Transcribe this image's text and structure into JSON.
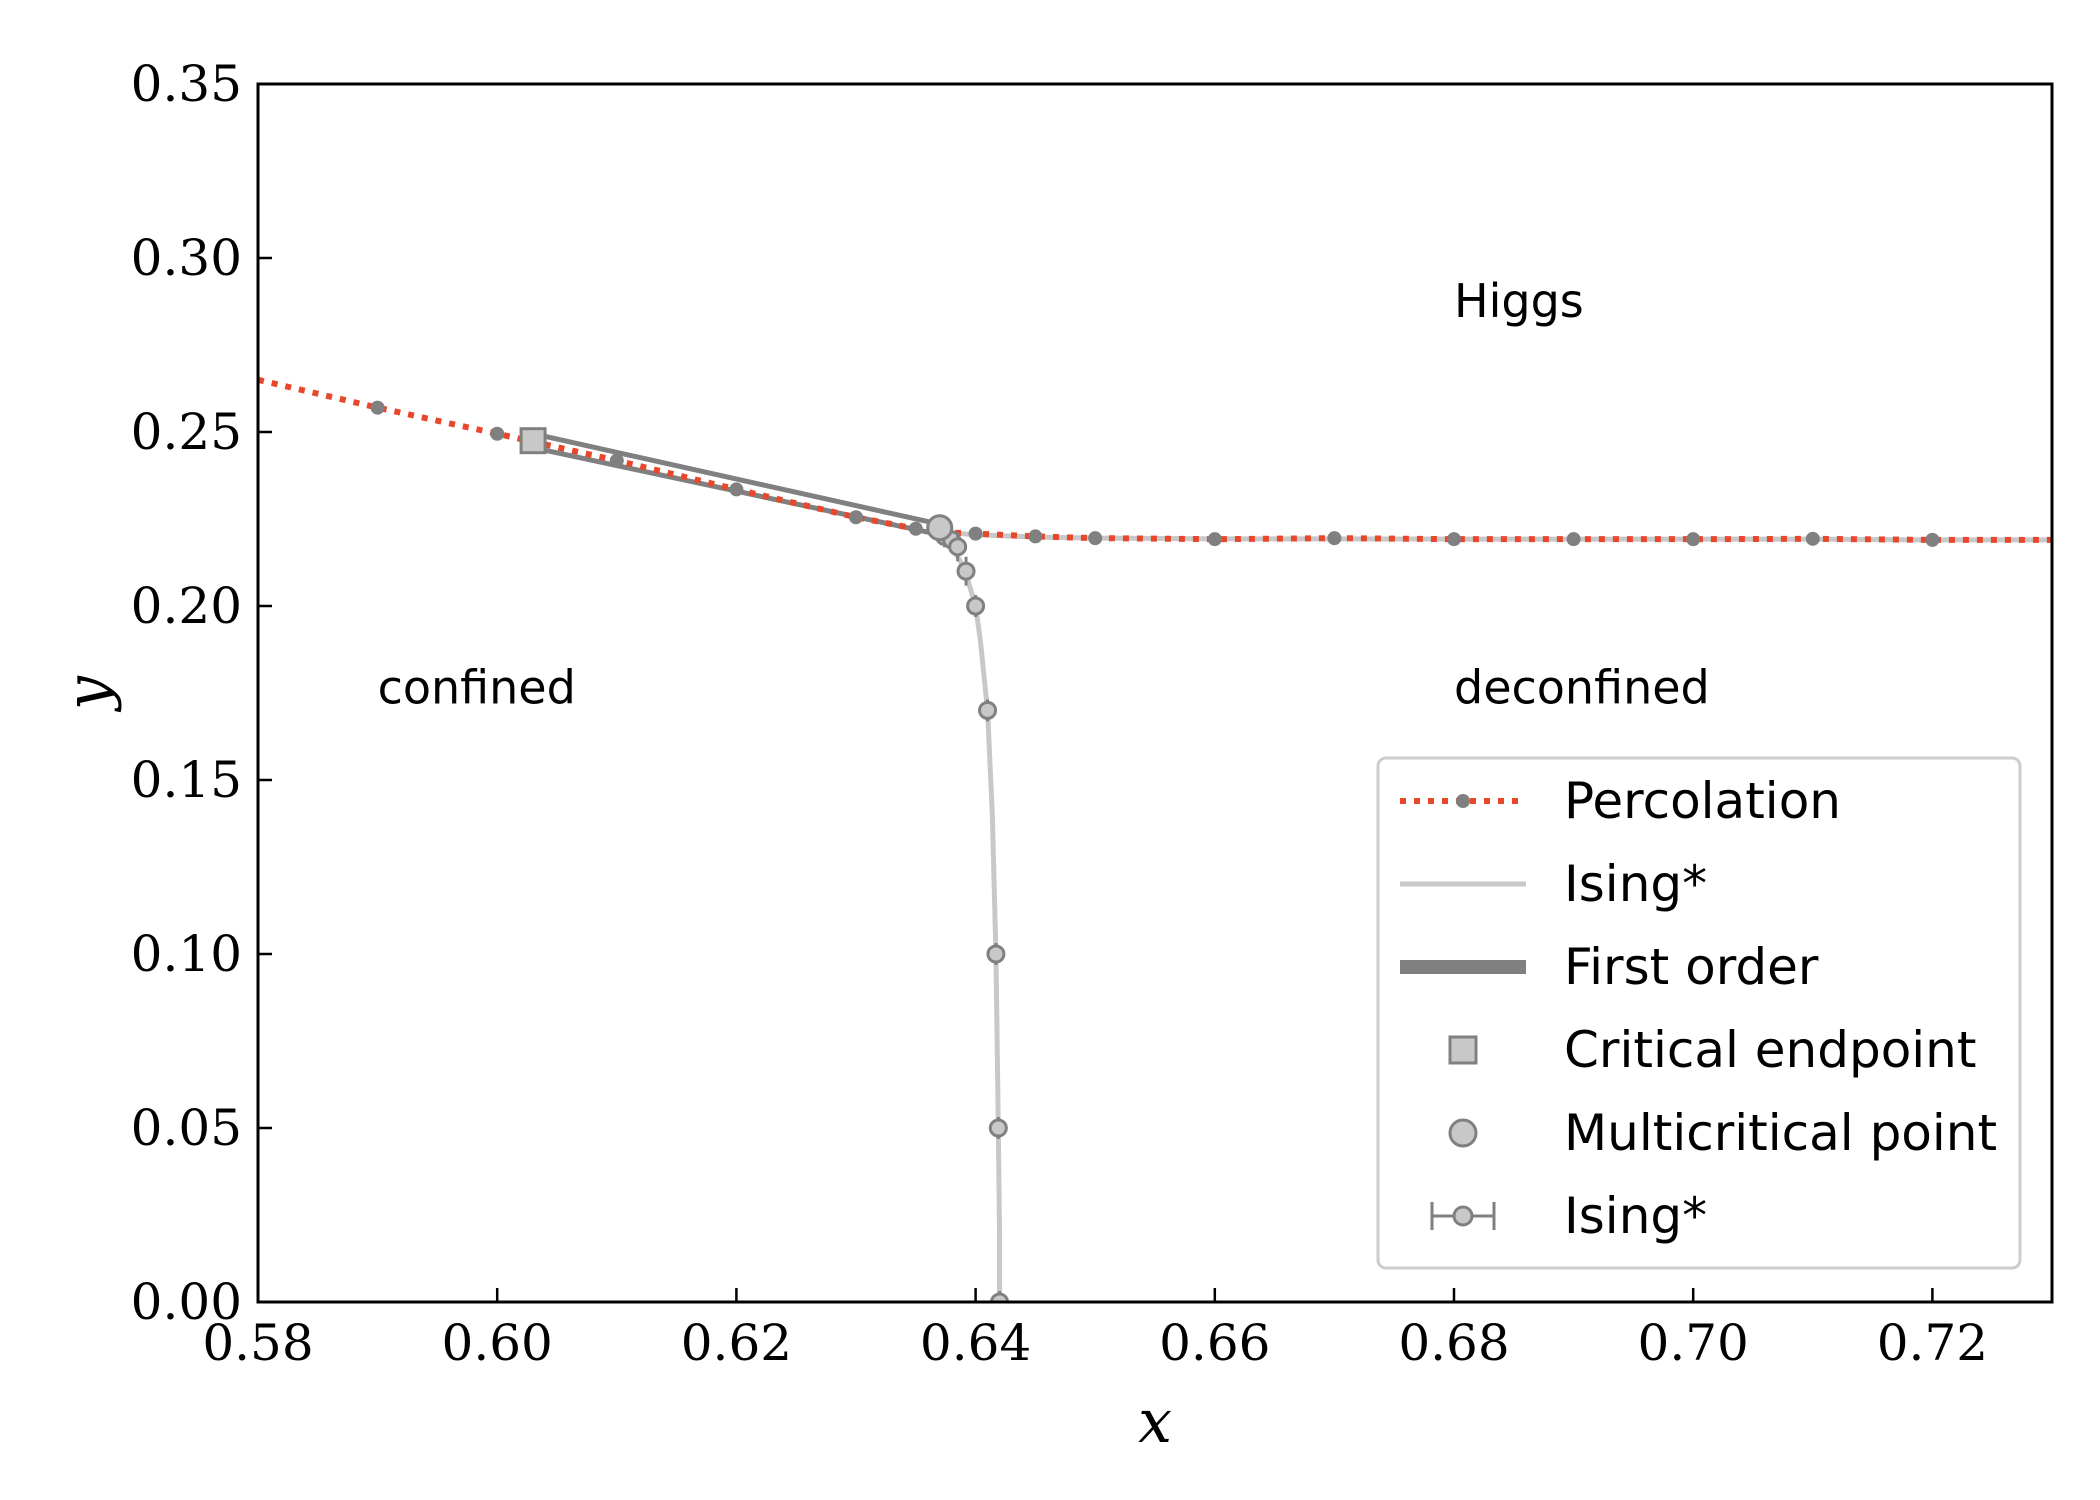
{
  "chart_data": {
    "type": "scatter",
    "xlabel": "x",
    "ylabel": "y",
    "xlim": [
      0.58,
      0.73
    ],
    "ylim": [
      0.0,
      0.35
    ],
    "xticks": [
      "0.58",
      "0.60",
      "0.62",
      "0.64",
      "0.66",
      "0.68",
      "0.70",
      "0.72"
    ],
    "yticks": [
      "0.00",
      "0.05",
      "0.10",
      "0.15",
      "0.20",
      "0.25",
      "0.30",
      "0.35"
    ],
    "grid": false,
    "legend_position": "lower-right",
    "region_labels": [
      {
        "text": "Higgs",
        "x": 0.68,
        "y": 0.283
      },
      {
        "text": "confined",
        "x": 0.59,
        "y": 0.172
      },
      {
        "text": "deconfined",
        "x": 0.68,
        "y": 0.172
      }
    ],
    "series": [
      {
        "name": "Percolation",
        "kind": "dotted-line-markers",
        "color": "#e8472c",
        "marker_color": "#808080",
        "line_x": [
          0.58,
          0.59,
          0.6,
          0.61,
          0.62,
          0.63,
          0.635,
          0.637,
          0.64,
          0.645,
          0.65,
          0.66,
          0.67,
          0.68,
          0.69,
          0.7,
          0.71,
          0.72,
          0.73
        ],
        "line_y": [
          0.265,
          0.257,
          0.2495,
          0.2418,
          0.2335,
          0.2255,
          0.2222,
          0.2212,
          0.2208,
          0.22,
          0.2195,
          0.2192,
          0.2195,
          0.2192,
          0.2192,
          0.2192,
          0.2193,
          0.219,
          0.219
        ],
        "x": [
          0.59,
          0.6,
          0.61,
          0.62,
          0.63,
          0.635,
          0.637,
          0.64,
          0.645,
          0.65,
          0.66,
          0.67,
          0.68,
          0.69,
          0.7,
          0.71,
          0.72
        ],
        "y": [
          0.257,
          0.2495,
          0.2418,
          0.2335,
          0.2255,
          0.2222,
          0.2212,
          0.2208,
          0.22,
          0.2195,
          0.2192,
          0.2195,
          0.2192,
          0.2192,
          0.2192,
          0.2193,
          0.219
        ]
      },
      {
        "name": "Ising*",
        "kind": "line",
        "color": "#c8c8c8",
        "segments": [
          {
            "x": [
              0.637,
              0.6374,
              0.638,
              0.6387,
              0.6393,
              0.64,
              0.6404,
              0.641,
              0.6414,
              0.6417,
              0.6419,
              0.642,
              0.642
            ],
            "y": [
              0.2225,
              0.22,
              0.217,
              0.213,
              0.208,
              0.2,
              0.19,
              0.17,
              0.14,
              0.1,
              0.05,
              0.02,
              0.0
            ]
          },
          {
            "x": [
              0.637,
              0.64,
              0.645,
              0.65,
              0.66,
              0.67,
              0.68,
              0.69,
              0.7,
              0.71,
              0.72,
              0.73
            ],
            "y": [
              0.2212,
              0.2205,
              0.2198,
              0.2195,
              0.2193,
              0.2193,
              0.2192,
              0.2192,
              0.2192,
              0.2192,
              0.219,
              0.219
            ]
          }
        ]
      },
      {
        "name": "First order",
        "kind": "band",
        "color": "#808080",
        "upper_x": [
          0.603,
          0.637
        ],
        "upper_y": [
          0.2495,
          0.2235
        ],
        "lower_x": [
          0.603,
          0.637
        ],
        "lower_y": [
          0.2455,
          0.2205
        ]
      },
      {
        "name": "Critical endpoint",
        "kind": "square-marker",
        "color": "#c8c8c8",
        "edge": "#808080",
        "x": [
          0.603
        ],
        "y": [
          0.2475
        ]
      },
      {
        "name": "Multicritical point",
        "kind": "circle-marker",
        "color": "#c8c8c8",
        "edge": "#808080",
        "x": [
          0.637
        ],
        "y": [
          0.2225
        ]
      },
      {
        "name": "Ising*",
        "kind": "errorbar-markers",
        "color": "#c8c8c8",
        "edge": "#808080",
        "x": [
          0.6374,
          0.638,
          0.6385,
          0.6392,
          0.64,
          0.641,
          0.6417,
          0.6419,
          0.642
        ],
        "y": [
          0.22,
          0.219,
          0.217,
          0.21,
          0.2,
          0.17,
          0.1,
          0.05,
          0.0
        ],
        "xerr": [
          0.0002,
          0.0002,
          0.0003,
          0.0003,
          0.0002,
          0.0002,
          0.0002,
          0.0002,
          0.0002
        ],
        "yerr": [
          0.002,
          0.002,
          0.003,
          0.003,
          0.002,
          0.002,
          0.002,
          0.002,
          0.002
        ]
      }
    ],
    "legend": [
      {
        "label": "Percolation",
        "symbol": "percolation"
      },
      {
        "label": "Ising*",
        "symbol": "ising-line"
      },
      {
        "label": "First order",
        "symbol": "first-order"
      },
      {
        "label": "Critical endpoint",
        "symbol": "square"
      },
      {
        "label": "Multicritical point",
        "symbol": "circle"
      },
      {
        "label": "Ising*",
        "symbol": "errorbar"
      }
    ]
  }
}
